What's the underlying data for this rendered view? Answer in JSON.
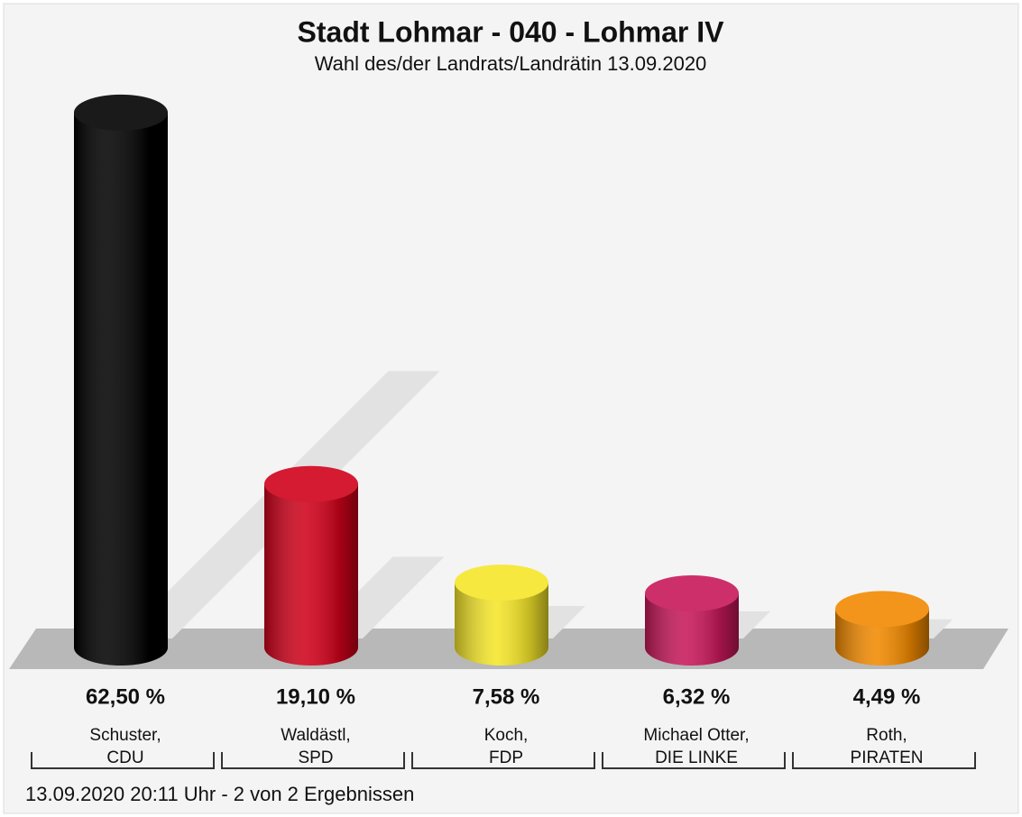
{
  "chart_data": {
    "type": "bar",
    "title": "Stadt Lohmar - 040 - Lohmar IV",
    "subtitle": "Wahl des/der Landrats/Landrätin 13.09.2020",
    "categories": [
      [
        "Schuster,",
        "CDU"
      ],
      [
        "Waldästl,",
        "SPD"
      ],
      [
        "Koch,",
        "FDP"
      ],
      [
        "Michael Otter,",
        "DIE LINKE"
      ],
      [
        "Roth,",
        "PIRATEN"
      ]
    ],
    "values": [
      62.5,
      19.1,
      7.58,
      6.32,
      4.49
    ],
    "value_labels": [
      "62,50 %",
      "19,10 %",
      "7,58 %",
      "6,32 %",
      "4,49 %"
    ],
    "colors": [
      "#000000",
      "#d0021b",
      "#f5e62a",
      "#c8185a",
      "#f28a00"
    ],
    "footnote": "13.09.2020 20:11 Uhr - 2 von 2 Ergebnissen"
  }
}
